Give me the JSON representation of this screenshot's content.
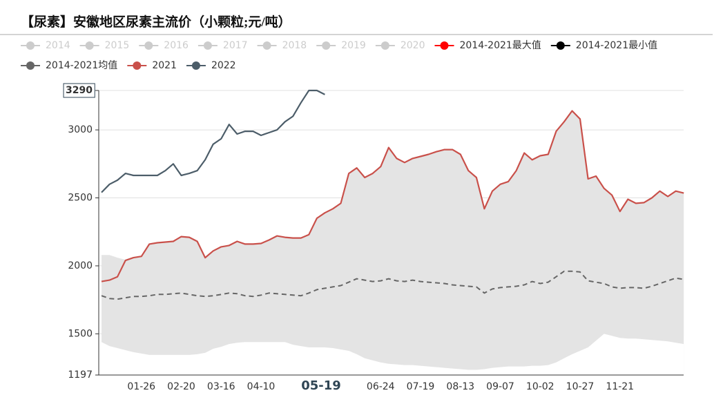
{
  "chart_data": {
    "type": "line",
    "title": "【尿素】安徽地区尿素主流价（小颗粒;元/吨）",
    "categories": [
      null,
      null,
      null,
      null,
      null,
      "01-26",
      null,
      null,
      null,
      null,
      "02-20",
      null,
      null,
      null,
      null,
      "03-16",
      null,
      null,
      null,
      null,
      "04-10",
      null,
      null,
      null,
      null,
      null,
      null,
      null,
      null,
      null,
      null,
      null,
      null,
      null,
      null,
      "06-24",
      null,
      null,
      null,
      null,
      "07-19",
      null,
      null,
      null,
      null,
      "08-13",
      null,
      null,
      null,
      null,
      "09-07",
      null,
      null,
      null,
      null,
      "10-02",
      null,
      null,
      null,
      null,
      "10-27",
      null,
      null,
      null,
      null,
      "11-21",
      null,
      null,
      null,
      null,
      null,
      null,
      null,
      null
    ],
    "pointer_label": "05-19",
    "ylim": [
      1197,
      3290
    ],
    "yticks": [
      1197,
      1500,
      2000,
      2500,
      3000,
      3290
    ],
    "grid": true,
    "legend": "top-left",
    "series": [
      {
        "name": "2014",
        "color": "#cccccc",
        "visible": false
      },
      {
        "name": "2015",
        "color": "#cccccc",
        "visible": false
      },
      {
        "name": "2016",
        "color": "#cccccc",
        "visible": false
      },
      {
        "name": "2017",
        "color": "#cccccc",
        "visible": false
      },
      {
        "name": "2018",
        "color": "#cccccc",
        "visible": false
      },
      {
        "name": "2019",
        "color": "#cccccc",
        "visible": false
      },
      {
        "name": "2020",
        "color": "#cccccc",
        "visible": false
      },
      {
        "name": "2014-2021最大值",
        "color": "#ff0000",
        "fill": "#e4e4e4",
        "visible": true,
        "values": [
          2080,
          2080,
          2060,
          2045,
          2060,
          2070,
          2160,
          2170,
          2175,
          2180,
          2215,
          2210,
          2180,
          2060,
          2110,
          2140,
          2150,
          2180,
          2160,
          2160,
          2165,
          2190,
          2220,
          2210,
          2205,
          2205,
          2230,
          2350,
          2390,
          2420,
          2460,
          2680,
          2720,
          2650,
          2680,
          2730,
          2870,
          2790,
          2760,
          2790,
          2805,
          2820,
          2840,
          2855,
          2855,
          2820,
          2700,
          2650,
          2420,
          2550,
          2600,
          2620,
          2700,
          2830,
          2780,
          2810,
          2820,
          2990,
          3060,
          3140,
          3080,
          2640,
          2660,
          2570,
          2520,
          2400,
          2490,
          2460,
          2465,
          2500,
          2550,
          2510,
          2550,
          2535
        ]
      },
      {
        "name": "2014-2021最小值",
        "color": "#000000",
        "fill": "#ffffff",
        "visible": true,
        "values": [
          1440,
          1410,
          1395,
          1380,
          1365,
          1355,
          1345,
          1345,
          1345,
          1345,
          1345,
          1345,
          1350,
          1360,
          1390,
          1405,
          1425,
          1435,
          1440,
          1440,
          1440,
          1440,
          1440,
          1440,
          1420,
          1410,
          1400,
          1400,
          1400,
          1395,
          1385,
          1375,
          1350,
          1320,
          1305,
          1290,
          1280,
          1275,
          1270,
          1270,
          1265,
          1260,
          1255,
          1250,
          1245,
          1240,
          1235,
          1235,
          1240,
          1250,
          1255,
          1260,
          1260,
          1260,
          1265,
          1265,
          1270,
          1290,
          1320,
          1350,
          1375,
          1400,
          1450,
          1500,
          1485,
          1470,
          1465,
          1465,
          1460,
          1455,
          1450,
          1445,
          1435,
          1425
        ]
      },
      {
        "name": "2014-2021均值",
        "color": "#666666",
        "dash": true,
        "visible": true,
        "values": [
          1780,
          1760,
          1755,
          1765,
          1775,
          1775,
          1780,
          1790,
          1790,
          1795,
          1800,
          1790,
          1780,
          1775,
          1780,
          1790,
          1800,
          1795,
          1780,
          1775,
          1785,
          1800,
          1795,
          1790,
          1785,
          1780,
          1800,
          1825,
          1835,
          1845,
          1855,
          1880,
          1905,
          1895,
          1885,
          1890,
          1905,
          1890,
          1885,
          1895,
          1885,
          1880,
          1875,
          1870,
          1860,
          1855,
          1850,
          1845,
          1800,
          1830,
          1840,
          1845,
          1850,
          1860,
          1885,
          1870,
          1880,
          1920,
          1960,
          1960,
          1955,
          1890,
          1880,
          1870,
          1845,
          1835,
          1840,
          1840,
          1835,
          1850,
          1870,
          1890,
          1910,
          1900
        ]
      },
      {
        "name": "2021",
        "color": "#c9504a",
        "visible": true,
        "values": [
          1885,
          1895,
          1920,
          2040,
          2060,
          2070,
          2160,
          2170,
          2175,
          2180,
          2215,
          2210,
          2180,
          2060,
          2110,
          2140,
          2150,
          2180,
          2160,
          2160,
          2165,
          2190,
          2220,
          2210,
          2205,
          2205,
          2230,
          2350,
          2390,
          2420,
          2460,
          2680,
          2720,
          2650,
          2680,
          2730,
          2870,
          2790,
          2760,
          2790,
          2805,
          2820,
          2840,
          2855,
          2855,
          2820,
          2700,
          2650,
          2420,
          2550,
          2600,
          2620,
          2700,
          2830,
          2780,
          2810,
          2820,
          2990,
          3060,
          3140,
          3080,
          2640,
          2660,
          2570,
          2520,
          2400,
          2490,
          2460,
          2465,
          2500,
          2550,
          2510,
          2550,
          2535
        ]
      },
      {
        "name": "2022",
        "color": "#4c5d69",
        "visible": true,
        "values": [
          2540,
          2600,
          2630,
          2680,
          2665,
          2665,
          2665,
          2665,
          2700,
          2750,
          2665,
          2680,
          2700,
          2780,
          2895,
          2935,
          3040,
          2970,
          2990,
          2990,
          2960,
          2980,
          3000,
          3060,
          3100,
          3200,
          3290,
          3290,
          3260,
          null,
          null,
          null,
          null,
          null,
          null,
          null,
          null,
          null,
          null,
          null,
          null,
          null,
          null,
          null,
          null,
          null,
          null,
          null,
          null,
          null,
          null,
          null,
          null,
          null,
          null,
          null,
          null,
          null,
          null,
          null,
          null,
          null,
          null,
          null,
          null,
          null,
          null,
          null,
          null,
          null,
          null,
          null,
          null,
          null
        ]
      }
    ]
  }
}
